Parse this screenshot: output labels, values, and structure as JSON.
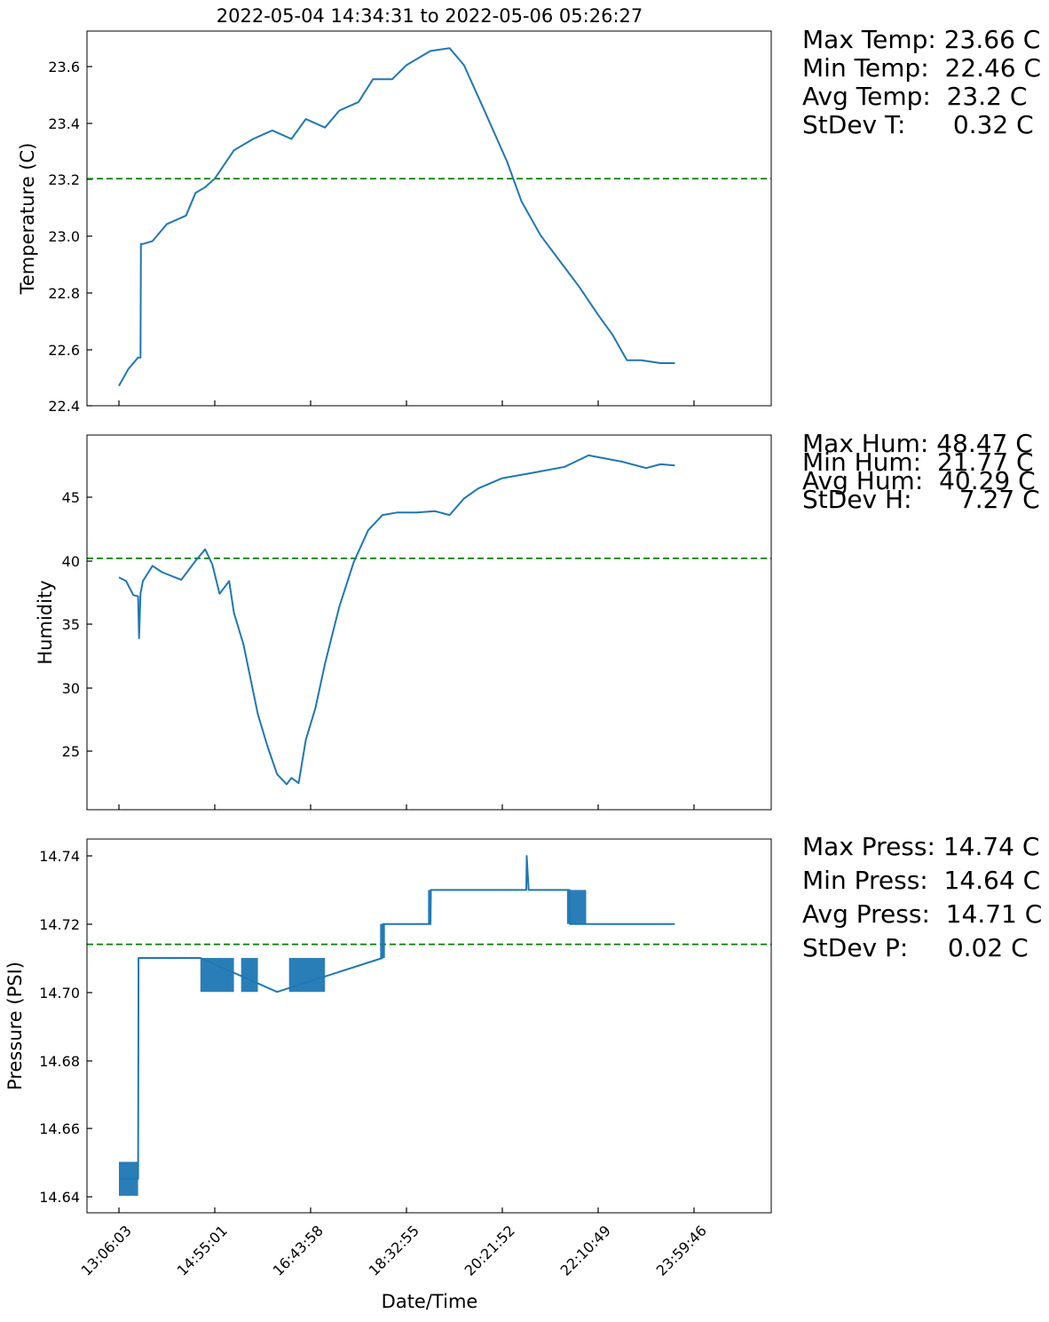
{
  "title": "2022-05-04 14:34:31 to 2022-05-06 05:26:27",
  "xlabel": "Date/Time",
  "colors": {
    "line": "#1f77b4",
    "mean": "#008000",
    "frame": "#000000"
  },
  "stats": {
    "temperature": [
      "Max Temp: 23.66 C",
      "Min Temp:  22.46 C",
      "Avg Temp:  23.2 C",
      "StDev T:      0.32 C"
    ],
    "humidity": [
      "Max Hum: 48.47 C",
      "Min Hum:  21.77 C",
      "Avg Hum:  40.29 C",
      "StDev H:      7.27 C"
    ],
    "pressure": [
      "Max Press: 14.74 C",
      "Min Press:  14.64 C",
      "Avg Press:  14.71 C",
      "StDev P:     0.02 C"
    ]
  },
  "chart_data": [
    {
      "type": "line",
      "ylabel": "Temperature (C)",
      "ylim": [
        22.4,
        23.72
      ],
      "yticks": [
        "22.4",
        "22.6",
        "22.8",
        "23.0",
        "23.2",
        "23.4",
        "23.6"
      ],
      "mean": 23.2,
      "x_hours": [
        0,
        0.2,
        0.4,
        0.45,
        0.46,
        0.5,
        0.7,
        1.0,
        1.4,
        1.6,
        1.8,
        2.0,
        2.4,
        2.8,
        3.2,
        3.6,
        3.9,
        4.3,
        4.6,
        5.0,
        5.3,
        5.7,
        6.0,
        6.5,
        6.9,
        7.2,
        7.6,
        8.1,
        8.4,
        8.8,
        9.2,
        9.6,
        10.0,
        10.3,
        10.6,
        10.9,
        11.3,
        11.6
      ],
      "y": [
        22.47,
        22.53,
        22.57,
        22.57,
        22.97,
        22.97,
        22.98,
        23.04,
        23.07,
        23.15,
        23.17,
        23.2,
        23.3,
        23.34,
        23.37,
        23.34,
        23.41,
        23.38,
        23.44,
        23.47,
        23.55,
        23.55,
        23.6,
        23.65,
        23.66,
        23.6,
        23.45,
        23.26,
        23.12,
        23.0,
        22.91,
        22.82,
        22.72,
        22.65,
        22.56,
        22.56,
        22.55,
        22.55
      ]
    },
    {
      "type": "line",
      "ylabel": "Humidity",
      "ylim": [
        20.5,
        50.0
      ],
      "yticks": [
        "25",
        "30",
        "35",
        "40",
        "45"
      ],
      "mean": 40.29,
      "x_hours": [
        0,
        0.15,
        0.3,
        0.4,
        0.42,
        0.45,
        0.5,
        0.7,
        0.9,
        1.3,
        1.6,
        1.8,
        1.95,
        2.1,
        2.3,
        2.4,
        2.6,
        2.9,
        3.1,
        3.3,
        3.5,
        3.6,
        3.75,
        3.9,
        4.1,
        4.3,
        4.6,
        4.9,
        5.2,
        5.5,
        5.8,
        6.2,
        6.6,
        6.9,
        7.2,
        7.5,
        8.0,
        8.6,
        9.3,
        9.8,
        10.5,
        11.0,
        11.3,
        11.6
      ],
      "y": [
        38.8,
        38.5,
        37.4,
        37.3,
        34.0,
        37.5,
        38.5,
        39.7,
        39.2,
        38.6,
        40.1,
        41.0,
        39.8,
        37.5,
        38.5,
        36.0,
        33.5,
        28.0,
        25.5,
        23.3,
        22.5,
        23.0,
        22.6,
        26.0,
        28.5,
        32.0,
        36.5,
        40.0,
        42.5,
        43.7,
        43.9,
        43.9,
        44.0,
        43.7,
        45.0,
        45.8,
        46.6,
        47.0,
        47.5,
        48.4,
        47.9,
        47.4,
        47.7,
        47.6
      ]
    },
    {
      "type": "line",
      "ylabel": "Pressure (PSI)",
      "ylim": [
        14.635,
        14.745
      ],
      "yticks": [
        "14.64",
        "14.66",
        "14.68",
        "14.70",
        "14.72",
        "14.74"
      ],
      "mean": 14.714,
      "x_hours": [
        0,
        0.4,
        0.41,
        1.7,
        3.3,
        5.5,
        5.51,
        6.5,
        6.51,
        8.5,
        8.51,
        8.55,
        9.4,
        9.41,
        11.6
      ],
      "y": [
        14.645,
        14.645,
        14.71,
        14.71,
        14.7,
        14.71,
        14.72,
        14.72,
        14.73,
        14.73,
        14.74,
        14.73,
        14.73,
        14.72,
        14.72
      ],
      "band_ranges_hours": [
        [
          0,
          0.4
        ],
        [
          1.7,
          2.4
        ],
        [
          2.55,
          2.9
        ],
        [
          3.55,
          4.3
        ],
        [
          5.45,
          5.55
        ],
        [
          6.45,
          6.52
        ],
        [
          9.35,
          9.75
        ]
      ]
    }
  ],
  "xticks": [
    "13:06:03",
    "14:55:01",
    "16:43:58",
    "18:32:55",
    "20:21:52",
    "22:10:49",
    "23:59:46"
  ]
}
